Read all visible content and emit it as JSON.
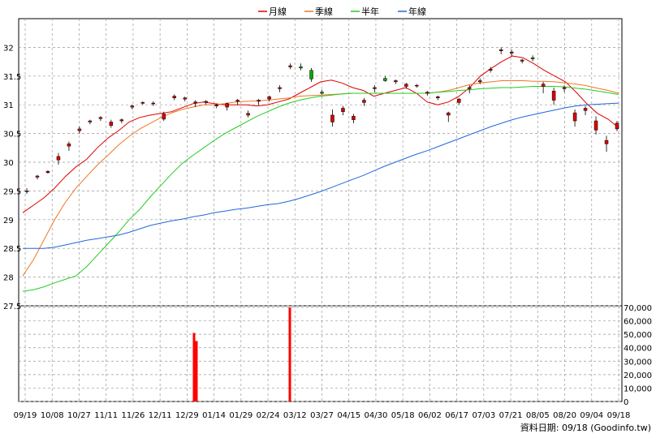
{
  "legend": [
    {
      "label": "月線",
      "color": "#dd0000"
    },
    {
      "label": "季線",
      "color": "#ee7722"
    },
    {
      "label": "半年",
      "color": "#22cc22"
    },
    {
      "label": "年線",
      "color": "#2266dd"
    }
  ],
  "footer": "資料日期: 09/18  (Goodinfo.tw)",
  "chart_data": {
    "type": "candlestick",
    "x_tick_labels": [
      "09/19",
      "10/08",
      "10/27",
      "11/11",
      "11/26",
      "12/11",
      "12/29",
      "01/14",
      "01/29",
      "02/24",
      "03/12",
      "03/27",
      "04/15",
      "04/30",
      "05/18",
      "06/02",
      "06/17",
      "07/03",
      "07/21",
      "08/05",
      "08/20",
      "09/04",
      "09/18"
    ],
    "price_axis": {
      "tick_labels": [
        "27.5",
        "28",
        "28.5",
        "29",
        "29.5",
        "30",
        "30.5",
        "31",
        "31.5",
        "32"
      ],
      "ylim": [
        27.5,
        32.5
      ]
    },
    "volume_axis": {
      "tick_labels": [
        "0",
        "10,000",
        "20,000",
        "30,000",
        "40,000",
        "50,000",
        "60,000",
        "70,000"
      ],
      "ylim": [
        0,
        70000
      ]
    },
    "moving_averages": [
      {
        "name": "月線",
        "color": "#dd0000",
        "values": [
          29.12,
          29.25,
          29.38,
          29.55,
          29.75,
          29.92,
          30.05,
          30.25,
          30.42,
          30.55,
          30.7,
          30.78,
          30.82,
          30.85,
          30.88,
          30.95,
          31.02,
          31.05,
          31.02,
          31.0,
          31.0,
          31.0,
          30.98,
          31.0,
          31.05,
          31.1,
          31.2,
          31.3,
          31.4,
          31.43,
          31.38,
          31.3,
          31.25,
          31.15,
          31.2,
          31.25,
          31.3,
          31.2,
          31.05,
          31.0,
          31.05,
          31.15,
          31.3,
          31.5,
          31.63,
          31.75,
          31.85,
          31.82,
          31.72,
          31.6,
          31.5,
          31.4,
          31.22,
          31.02,
          30.85,
          30.75,
          30.6
        ]
      },
      {
        "name": "季線",
        "color": "#ee7722",
        "values": [
          28.02,
          28.3,
          28.65,
          29.0,
          29.3,
          29.55,
          29.75,
          29.95,
          30.12,
          30.3,
          30.45,
          30.58,
          30.68,
          30.78,
          30.86,
          30.92,
          30.96,
          31.0,
          31.0,
          31.02,
          31.05,
          31.06,
          31.07,
          31.08,
          31.1,
          31.12,
          31.15,
          31.16,
          31.17,
          31.18,
          31.19,
          31.2,
          31.2,
          31.2,
          31.2,
          31.2,
          31.2,
          31.2,
          31.2,
          31.22,
          31.25,
          31.3,
          31.35,
          31.38,
          31.4,
          31.42,
          31.42,
          31.42,
          31.41,
          31.41,
          31.4,
          31.38,
          31.36,
          31.33,
          31.29,
          31.25,
          31.2
        ]
      },
      {
        "name": "半年",
        "color": "#22cc22",
        "values": [
          27.75,
          27.78,
          27.83,
          27.9,
          27.96,
          28.02,
          28.18,
          28.38,
          28.58,
          28.78,
          29.0,
          29.18,
          29.4,
          29.6,
          29.8,
          29.98,
          30.12,
          30.25,
          30.38,
          30.5,
          30.6,
          30.7,
          30.8,
          30.88,
          30.96,
          31.03,
          31.08,
          31.12,
          31.15,
          31.17,
          31.19,
          31.2,
          31.2,
          31.2,
          31.2,
          31.2,
          31.2,
          31.2,
          31.2,
          31.22,
          31.23,
          31.25,
          31.26,
          31.28,
          31.29,
          31.3,
          31.3,
          31.31,
          31.32,
          31.32,
          31.32,
          31.31,
          31.29,
          31.27,
          31.24,
          31.21,
          31.18
        ]
      },
      {
        "name": "年線",
        "color": "#2266dd",
        "values": [
          28.5,
          28.5,
          28.5,
          28.52,
          28.56,
          28.6,
          28.64,
          28.67,
          28.7,
          28.73,
          28.78,
          28.84,
          28.9,
          28.94,
          28.98,
          29.01,
          29.05,
          29.08,
          29.12,
          29.15,
          29.18,
          29.2,
          29.23,
          29.26,
          29.28,
          29.32,
          29.37,
          29.43,
          29.49,
          29.56,
          29.63,
          29.7,
          29.77,
          29.85,
          29.93,
          30.0,
          30.07,
          30.14,
          30.2,
          30.27,
          30.34,
          30.41,
          30.48,
          30.55,
          30.62,
          30.68,
          30.74,
          30.79,
          30.83,
          30.87,
          30.91,
          30.95,
          30.98,
          31.0,
          31.01,
          31.02,
          31.03
        ]
      }
    ],
    "candles": [
      {
        "o": 29.5,
        "h": 29.55,
        "l": 29.45,
        "c": 29.5
      },
      {
        "o": 29.74,
        "h": 29.78,
        "l": 29.7,
        "c": 29.76
      },
      {
        "o": 29.82,
        "h": 29.86,
        "l": 29.8,
        "c": 29.84
      },
      {
        "o": 30.04,
        "h": 30.16,
        "l": 29.96,
        "c": 30.1
      },
      {
        "o": 30.28,
        "h": 30.36,
        "l": 30.2,
        "c": 30.32
      },
      {
        "o": 30.55,
        "h": 30.62,
        "l": 30.5,
        "c": 30.58
      },
      {
        "o": 30.7,
        "h": 30.74,
        "l": 30.66,
        "c": 30.72
      },
      {
        "o": 30.76,
        "h": 30.8,
        "l": 30.72,
        "c": 30.78
      },
      {
        "o": 30.64,
        "h": 30.74,
        "l": 30.6,
        "c": 30.7
      },
      {
        "o": 30.72,
        "h": 30.76,
        "l": 30.68,
        "c": 30.74
      },
      {
        "o": 30.96,
        "h": 31.0,
        "l": 30.92,
        "c": 30.98
      },
      {
        "o": 31.03,
        "h": 31.06,
        "l": 31.0,
        "c": 31.04
      },
      {
        "o": 31.02,
        "h": 31.06,
        "l": 30.98,
        "c": 31.03
      },
      {
        "o": 30.75,
        "h": 30.88,
        "l": 30.72,
        "c": 30.84
      },
      {
        "o": 31.12,
        "h": 31.18,
        "l": 31.08,
        "c": 31.15
      },
      {
        "o": 31.1,
        "h": 31.14,
        "l": 31.06,
        "c": 31.12
      },
      {
        "o": 31.03,
        "h": 31.08,
        "l": 30.96,
        "c": 31.05
      },
      {
        "o": 31.04,
        "h": 31.08,
        "l": 31.0,
        "c": 31.06
      },
      {
        "o": 30.98,
        "h": 31.02,
        "l": 30.94,
        "c": 31.0
      },
      {
        "o": 30.96,
        "h": 31.04,
        "l": 30.9,
        "c": 31.02
      },
      {
        "o": 31.06,
        "h": 31.1,
        "l": 31.0,
        "c": 31.08
      },
      {
        "o": 30.82,
        "h": 30.9,
        "l": 30.78,
        "c": 30.85
      },
      {
        "o": 31.06,
        "h": 31.1,
        "l": 31.0,
        "c": 31.08
      },
      {
        "o": 31.1,
        "h": 31.16,
        "l": 31.06,
        "c": 31.14
      },
      {
        "o": 31.28,
        "h": 31.34,
        "l": 31.22,
        "c": 31.3
      },
      {
        "o": 31.66,
        "h": 31.72,
        "l": 31.62,
        "c": 31.68
      },
      {
        "o": 31.66,
        "h": 31.72,
        "l": 31.6,
        "c": 31.64
      },
      {
        "o": 31.6,
        "h": 31.64,
        "l": 31.4,
        "c": 31.45
      },
      {
        "o": 31.22,
        "h": 31.26,
        "l": 31.18,
        "c": 31.2
      },
      {
        "o": 30.7,
        "h": 30.92,
        "l": 30.62,
        "c": 30.82
      },
      {
        "o": 30.88,
        "h": 30.98,
        "l": 30.82,
        "c": 30.94
      },
      {
        "o": 30.74,
        "h": 30.84,
        "l": 30.68,
        "c": 30.8
      },
      {
        "o": 31.04,
        "h": 31.12,
        "l": 30.98,
        "c": 31.08
      },
      {
        "o": 31.28,
        "h": 31.34,
        "l": 31.22,
        "c": 31.3
      },
      {
        "o": 31.46,
        "h": 31.5,
        "l": 31.4,
        "c": 31.42
      },
      {
        "o": 31.4,
        "h": 31.44,
        "l": 31.36,
        "c": 31.42
      },
      {
        "o": 31.32,
        "h": 31.38,
        "l": 31.28,
        "c": 31.36
      },
      {
        "o": 31.33,
        "h": 31.36,
        "l": 31.3,
        "c": 31.34
      },
      {
        "o": 31.2,
        "h": 31.24,
        "l": 31.16,
        "c": 31.22
      },
      {
        "o": 31.12,
        "h": 31.16,
        "l": 31.08,
        "c": 31.14
      },
      {
        "o": 30.82,
        "h": 30.88,
        "l": 30.7,
        "c": 30.86
      },
      {
        "o": 31.04,
        "h": 31.12,
        "l": 31.0,
        "c": 31.1
      },
      {
        "o": 31.28,
        "h": 31.34,
        "l": 31.2,
        "c": 31.3
      },
      {
        "o": 31.4,
        "h": 31.46,
        "l": 31.36,
        "c": 31.42
      },
      {
        "o": 31.6,
        "h": 31.66,
        "l": 31.56,
        "c": 31.62
      },
      {
        "o": 31.94,
        "h": 32.0,
        "l": 31.88,
        "c": 31.96
      },
      {
        "o": 31.9,
        "h": 31.96,
        "l": 31.84,
        "c": 31.92
      },
      {
        "o": 31.76,
        "h": 31.8,
        "l": 31.72,
        "c": 31.78
      },
      {
        "o": 31.82,
        "h": 31.86,
        "l": 31.76,
        "c": 31.8
      },
      {
        "o": 31.32,
        "h": 31.4,
        "l": 31.2,
        "c": 31.36
      },
      {
        "o": 31.08,
        "h": 31.3,
        "l": 31.0,
        "c": 31.24
      },
      {
        "o": 31.28,
        "h": 31.34,
        "l": 31.22,
        "c": 31.3
      },
      {
        "o": 30.72,
        "h": 30.92,
        "l": 30.62,
        "c": 30.86
      },
      {
        "o": 30.9,
        "h": 30.98,
        "l": 30.82,
        "c": 30.94
      },
      {
        "o": 30.56,
        "h": 30.8,
        "l": 30.48,
        "c": 30.72
      },
      {
        "o": 30.32,
        "h": 30.46,
        "l": 30.18,
        "c": 30.38
      },
      {
        "o": 30.58,
        "h": 30.72,
        "l": 30.54,
        "c": 30.68
      }
    ],
    "volumes": [
      {
        "x": 239,
        "v": 51000
      },
      {
        "x": 242,
        "v": 45000
      },
      {
        "x": 357,
        "v": 70000
      }
    ]
  }
}
